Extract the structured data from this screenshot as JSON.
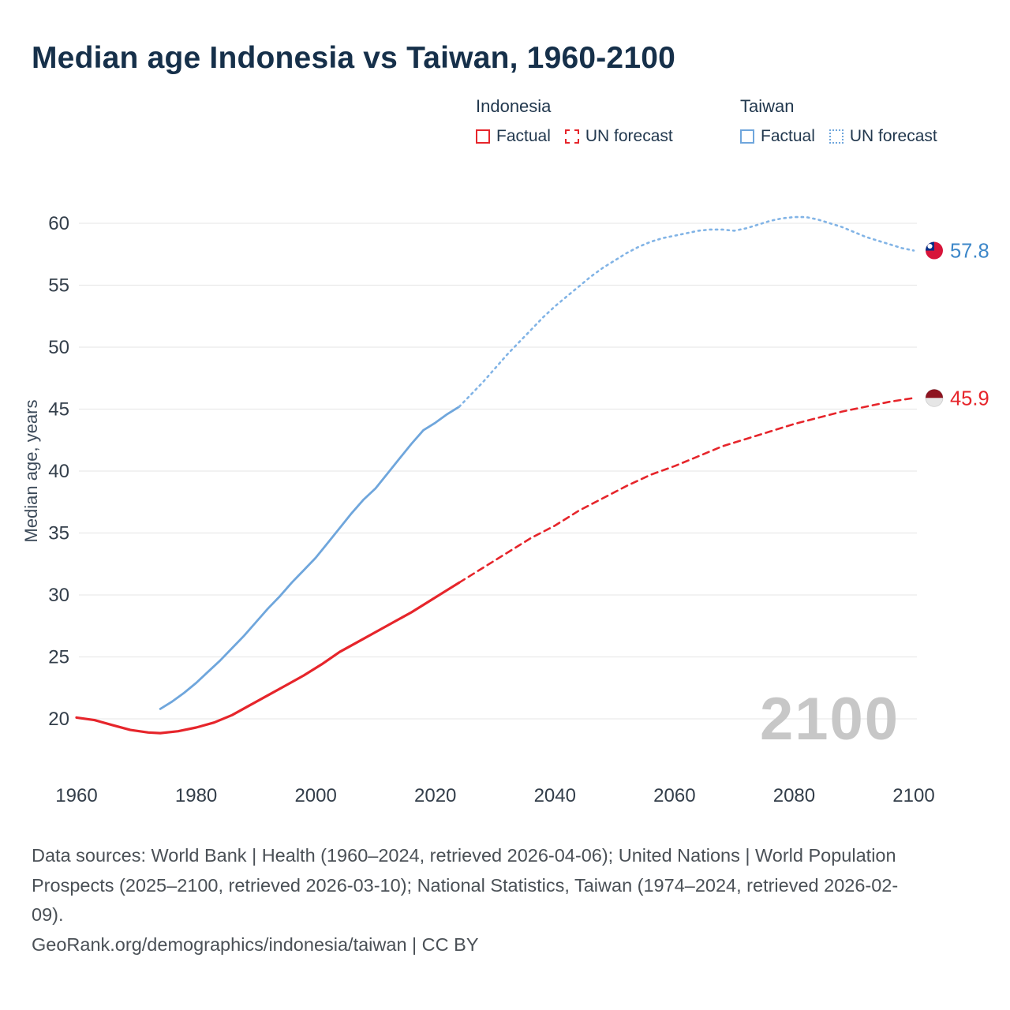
{
  "page": {
    "title": "Median age Indonesia vs Taiwan, 1960-2100",
    "watermark": "2100",
    "footer": {
      "sources": "Data sources: World Bank | Health (1960–2024, retrieved 2026-04-06); United Nations | World Population Prospects (2025–2100, retrieved 2026-03-10); National Statistics, Taiwan (1974–2024, retrieved 2026-02-09).",
      "attribution": "GeoRank.org/demographics/indonesia/taiwan | CC BY"
    }
  },
  "legend": {
    "groups": [
      {
        "name": "Indonesia",
        "color": "#e6252b",
        "items": [
          {
            "label": "Factual",
            "style": "solid"
          },
          {
            "label": "UN forecast",
            "style": "dashed"
          }
        ]
      },
      {
        "name": "Taiwan",
        "color": "#6fa6dc",
        "items": [
          {
            "label": "Factual",
            "style": "solid"
          },
          {
            "label": "UN forecast",
            "style": "dotted"
          }
        ]
      }
    ]
  },
  "chart_data": {
    "type": "line",
    "title": "Median age Indonesia vs Taiwan, 1960-2100",
    "xlabel": "",
    "ylabel": "Median age, years",
    "x_ticks": [
      1960,
      1980,
      2000,
      2020,
      2040,
      2060,
      2080,
      2100
    ],
    "y_ticks": [
      20,
      25,
      30,
      35,
      40,
      45,
      50,
      55,
      60
    ],
    "grid": "horizontal",
    "legend_position": "top-right",
    "series": [
      {
        "name": "Indonesia Factual",
        "color": "#e6252b",
        "style": "solid",
        "points": [
          [
            1960,
            20.1
          ],
          [
            1963,
            19.9
          ],
          [
            1966,
            19.5
          ],
          [
            1969,
            19.1
          ],
          [
            1972,
            18.9
          ],
          [
            1974,
            18.85
          ],
          [
            1977,
            19.0
          ],
          [
            1980,
            19.3
          ],
          [
            1983,
            19.7
          ],
          [
            1986,
            20.3
          ],
          [
            1989,
            21.1
          ],
          [
            1992,
            21.9
          ],
          [
            1995,
            22.7
          ],
          [
            1998,
            23.5
          ],
          [
            2001,
            24.4
          ],
          [
            2004,
            25.4
          ],
          [
            2007,
            26.2
          ],
          [
            2010,
            27.0
          ],
          [
            2013,
            27.8
          ],
          [
            2016,
            28.6
          ],
          [
            2019,
            29.5
          ],
          [
            2022,
            30.4
          ],
          [
            2024,
            31.0
          ]
        ]
      },
      {
        "name": "Indonesia UN forecast",
        "color": "#e6252b",
        "style": "dashed",
        "points": [
          [
            2024,
            31.0
          ],
          [
            2028,
            32.2
          ],
          [
            2032,
            33.4
          ],
          [
            2036,
            34.6
          ],
          [
            2040,
            35.6
          ],
          [
            2044,
            36.8
          ],
          [
            2048,
            37.8
          ],
          [
            2052,
            38.8
          ],
          [
            2056,
            39.7
          ],
          [
            2060,
            40.4
          ],
          [
            2064,
            41.2
          ],
          [
            2068,
            42.0
          ],
          [
            2072,
            42.6
          ],
          [
            2076,
            43.2
          ],
          [
            2080,
            43.8
          ],
          [
            2084,
            44.3
          ],
          [
            2088,
            44.8
          ],
          [
            2092,
            45.2
          ],
          [
            2096,
            45.6
          ],
          [
            2100,
            45.9
          ]
        ]
      },
      {
        "name": "Taiwan Factual",
        "color": "#6fa6dc",
        "style": "solid",
        "points": [
          [
            1974,
            20.8
          ],
          [
            1976,
            21.4
          ],
          [
            1978,
            22.1
          ],
          [
            1980,
            22.9
          ],
          [
            1982,
            23.8
          ],
          [
            1984,
            24.7
          ],
          [
            1986,
            25.7
          ],
          [
            1988,
            26.7
          ],
          [
            1990,
            27.8
          ],
          [
            1992,
            28.9
          ],
          [
            1994,
            29.9
          ],
          [
            1996,
            31.0
          ],
          [
            1998,
            32.0
          ],
          [
            2000,
            33.0
          ],
          [
            2002,
            34.2
          ],
          [
            2004,
            35.4
          ],
          [
            2006,
            36.6
          ],
          [
            2008,
            37.7
          ],
          [
            2010,
            38.6
          ],
          [
            2012,
            39.8
          ],
          [
            2014,
            41.0
          ],
          [
            2016,
            42.2
          ],
          [
            2018,
            43.3
          ],
          [
            2020,
            43.9
          ],
          [
            2022,
            44.6
          ],
          [
            2024,
            45.2
          ]
        ]
      },
      {
        "name": "Taiwan UN forecast",
        "color": "#82b4e6",
        "style": "dotted",
        "points": [
          [
            2024,
            45.2
          ],
          [
            2026,
            46.2
          ],
          [
            2028,
            47.2
          ],
          [
            2030,
            48.3
          ],
          [
            2032,
            49.4
          ],
          [
            2034,
            50.4
          ],
          [
            2036,
            51.4
          ],
          [
            2038,
            52.4
          ],
          [
            2040,
            53.3
          ],
          [
            2042,
            54.1
          ],
          [
            2044,
            54.9
          ],
          [
            2046,
            55.7
          ],
          [
            2048,
            56.4
          ],
          [
            2050,
            57.0
          ],
          [
            2052,
            57.6
          ],
          [
            2054,
            58.1
          ],
          [
            2056,
            58.5
          ],
          [
            2058,
            58.8
          ],
          [
            2060,
            59.0
          ],
          [
            2062,
            59.2
          ],
          [
            2064,
            59.4
          ],
          [
            2066,
            59.5
          ],
          [
            2068,
            59.5
          ],
          [
            2070,
            59.4
          ],
          [
            2072,
            59.6
          ],
          [
            2074,
            59.9
          ],
          [
            2076,
            60.2
          ],
          [
            2078,
            60.4
          ],
          [
            2080,
            60.5
          ],
          [
            2082,
            60.5
          ],
          [
            2084,
            60.3
          ],
          [
            2086,
            60.0
          ],
          [
            2088,
            59.7
          ],
          [
            2090,
            59.3
          ],
          [
            2092,
            58.9
          ],
          [
            2094,
            58.6
          ],
          [
            2096,
            58.3
          ],
          [
            2098,
            58.0
          ],
          [
            2100,
            57.8
          ]
        ]
      }
    ],
    "end_labels": [
      {
        "label": "57.8",
        "value": 57.8,
        "color": "#3d87c9",
        "flag": "taiwan"
      },
      {
        "label": "45.9",
        "value": 45.9,
        "color": "#e6252b",
        "flag": "indonesia"
      }
    ]
  }
}
